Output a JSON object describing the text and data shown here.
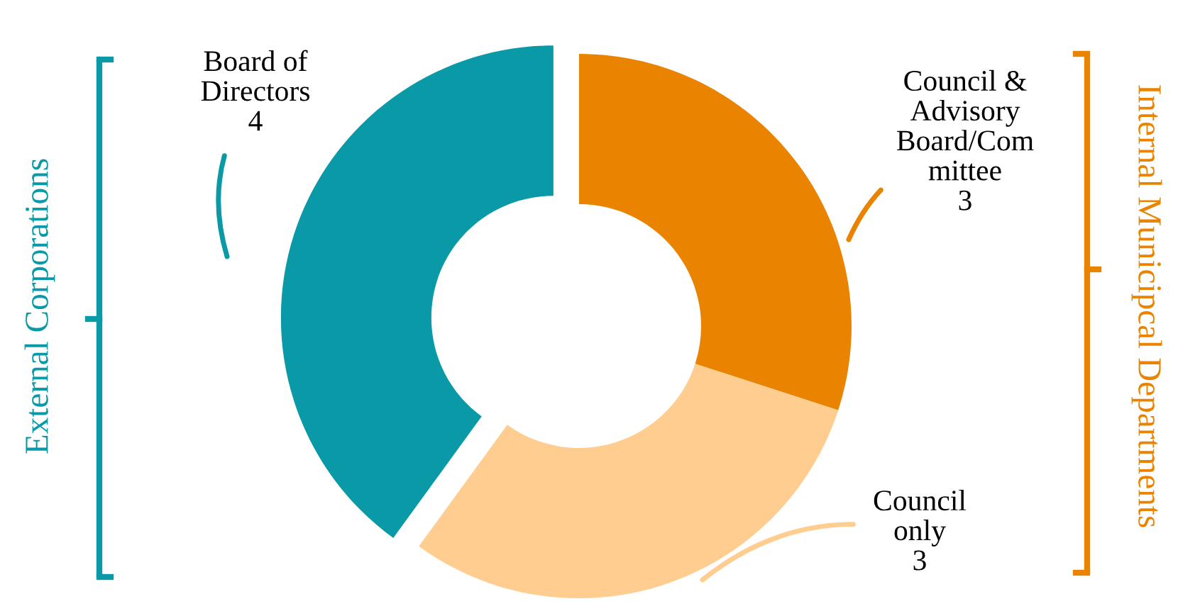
{
  "chart_data": {
    "type": "donut",
    "categories": [
      "Council & Advisory Board/Committee",
      "Council only",
      "Board of Directors"
    ],
    "values": [
      3,
      3,
      4
    ],
    "colors": [
      "#e98300",
      "#fecd8f",
      "#0a99a6"
    ],
    "data_labels": true,
    "annotations": [
      "External Corporations",
      "Internal Municipcal Departments"
    ]
  }
}
